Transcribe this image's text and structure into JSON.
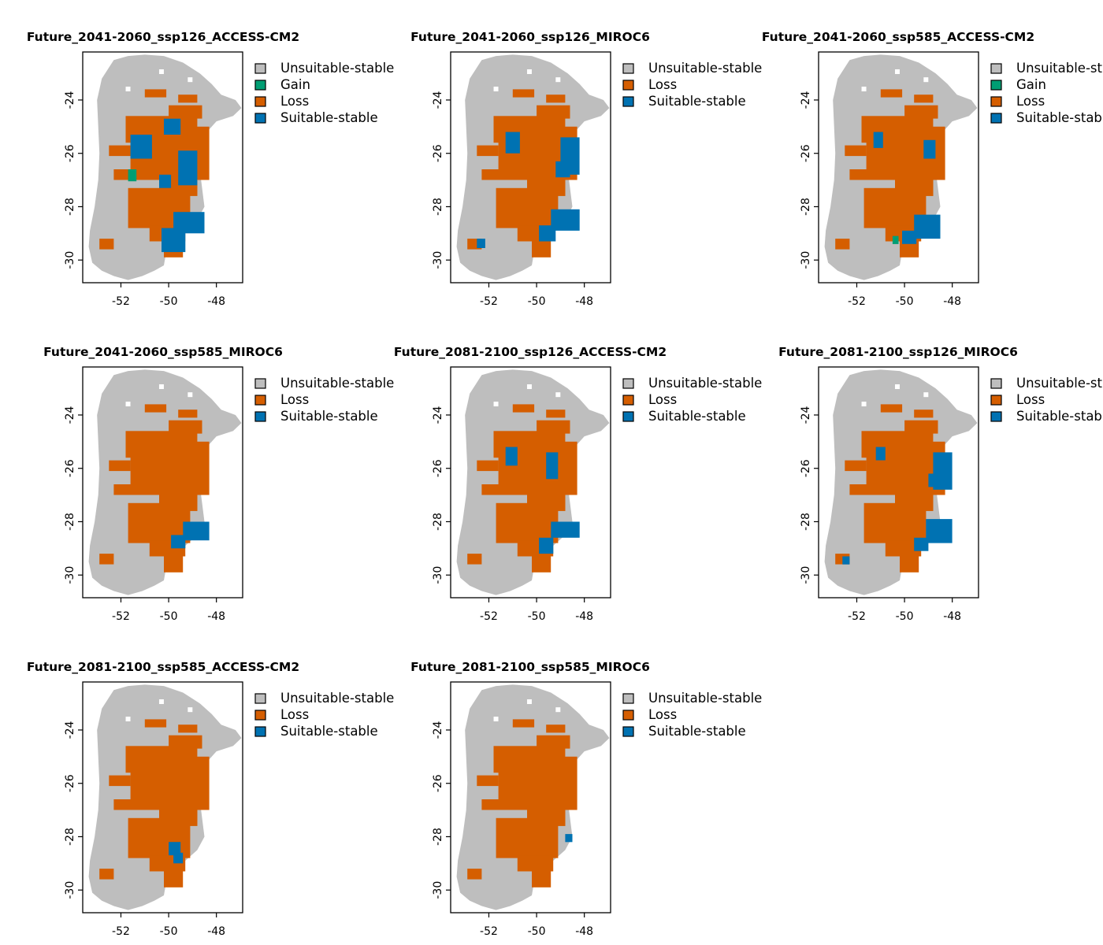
{
  "colors": {
    "Unsuitable-stable": "#bebebe",
    "Gain": "#009e73",
    "Loss": "#d55e00",
    "Suitable-stable": "#0072b2"
  },
  "axes": {
    "x_ticks": [
      -52,
      -50,
      -48
    ],
    "y_ticks": [
      -24,
      -26,
      -28,
      -30
    ],
    "x_range": [
      -53.6,
      -46.9
    ],
    "y_range": [
      -30.85,
      -22.2
    ]
  },
  "panels": [
    {
      "title": "Future_2041-2060_ssp126_ACCESS-CM2",
      "legend": [
        "Unsuitable-stable",
        "Gain",
        "Loss",
        "Suitable-stable"
      ],
      "blue": [
        [
          -51.6,
          -25.3,
          0.9,
          0.9
        ],
        [
          -50.2,
          -24.7,
          0.7,
          0.6
        ],
        [
          -49.6,
          -25.9,
          0.8,
          1.3
        ],
        [
          -50.4,
          -26.8,
          0.5,
          0.5
        ],
        [
          -49.8,
          -28.2,
          1.3,
          0.8
        ],
        [
          -50.3,
          -28.8,
          1.0,
          0.9
        ]
      ],
      "gain": [
        [
          -51.7,
          -26.6,
          0.35,
          0.45
        ]
      ]
    },
    {
      "title": "Future_2041-2060_ssp126_MIROC6",
      "legend": [
        "Unsuitable-stable",
        "Loss",
        "Suitable-stable"
      ],
      "blue": [
        [
          -51.3,
          -25.2,
          0.6,
          0.8
        ],
        [
          -49.0,
          -25.4,
          0.8,
          1.4
        ],
        [
          -49.2,
          -26.3,
          0.6,
          0.6
        ],
        [
          -49.4,
          -28.1,
          1.2,
          0.8
        ],
        [
          -49.9,
          -28.7,
          0.7,
          0.6
        ],
        [
          -52.5,
          -29.2,
          0.35,
          0.35
        ]
      ],
      "gain": []
    },
    {
      "title": "Future_2041-2060_ssp585_ACCESS-CM2",
      "legend": [
        "Unsuitable-stable",
        "Gain",
        "Loss",
        "Suitable-stable"
      ],
      "blue": [
        [
          -51.3,
          -25.2,
          0.4,
          0.6
        ],
        [
          -49.2,
          -25.5,
          0.5,
          0.7
        ],
        [
          -49.6,
          -28.3,
          1.1,
          0.9
        ],
        [
          -50.1,
          -28.9,
          0.6,
          0.5
        ]
      ],
      "gain": [
        [
          -50.5,
          -29.1,
          0.25,
          0.3
        ]
      ]
    },
    {
      "title": "Future_2041-2060_ssp585_MIROC6",
      "legend": [
        "Unsuitable-stable",
        "Loss",
        "Suitable-stable"
      ],
      "blue": [
        [
          -49.4,
          -28.0,
          1.1,
          0.7
        ],
        [
          -49.9,
          -28.5,
          0.6,
          0.5
        ]
      ],
      "gain": []
    },
    {
      "title": "Future_2081-2100_ssp126_ACCESS-CM2",
      "legend": [
        "Unsuitable-stable",
        "Loss",
        "Suitable-stable"
      ],
      "blue": [
        [
          -51.3,
          -25.2,
          0.5,
          0.7
        ],
        [
          -49.6,
          -25.4,
          0.5,
          1.0
        ],
        [
          -49.4,
          -28.0,
          1.2,
          0.6
        ],
        [
          -49.9,
          -28.6,
          0.6,
          0.6
        ]
      ],
      "gain": []
    },
    {
      "title": "Future_2081-2100_ssp126_MIROC6",
      "legend": [
        "Unsuitable-stable",
        "Loss",
        "Suitable-stable"
      ],
      "blue": [
        [
          -51.2,
          -25.2,
          0.4,
          0.5
        ],
        [
          -48.8,
          -25.4,
          0.8,
          1.4
        ],
        [
          -49.0,
          -26.2,
          0.5,
          0.5
        ],
        [
          -49.1,
          -27.9,
          1.1,
          0.9
        ],
        [
          -49.6,
          -28.6,
          0.6,
          0.5
        ],
        [
          -52.6,
          -29.3,
          0.3,
          0.3
        ]
      ],
      "gain": []
    },
    {
      "title": "Future_2081-2100_ssp585_ACCESS-CM2",
      "legend": [
        "Unsuitable-stable",
        "Loss",
        "Suitable-stable"
      ],
      "blue": [
        [
          -50.0,
          -28.2,
          0.5,
          0.5
        ],
        [
          -49.8,
          -28.6,
          0.4,
          0.4
        ]
      ],
      "gain": []
    },
    {
      "title": "Future_2081-2100_ssp585_MIROC6",
      "legend": [
        "Unsuitable-stable",
        "Loss",
        "Suitable-stable"
      ],
      "blue": [
        [
          -48.8,
          -27.9,
          0.3,
          0.3
        ]
      ],
      "gain": []
    }
  ]
}
